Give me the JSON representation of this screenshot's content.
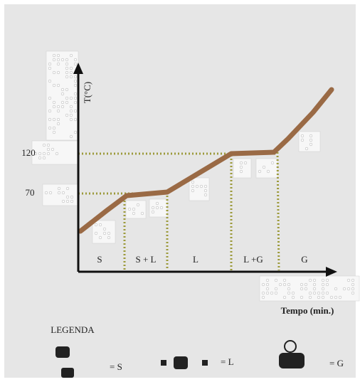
{
  "axes": {
    "y_label": "T(°C)",
    "x_label": "Tempo (min.)",
    "y_ticks": [
      "120",
      "70"
    ]
  },
  "phases": [
    "S",
    "S + L",
    "L",
    "L +G",
    "G"
  ],
  "legend": {
    "title": "LEGENDA",
    "items": [
      "= S",
      "= L",
      "= G"
    ]
  }
}
